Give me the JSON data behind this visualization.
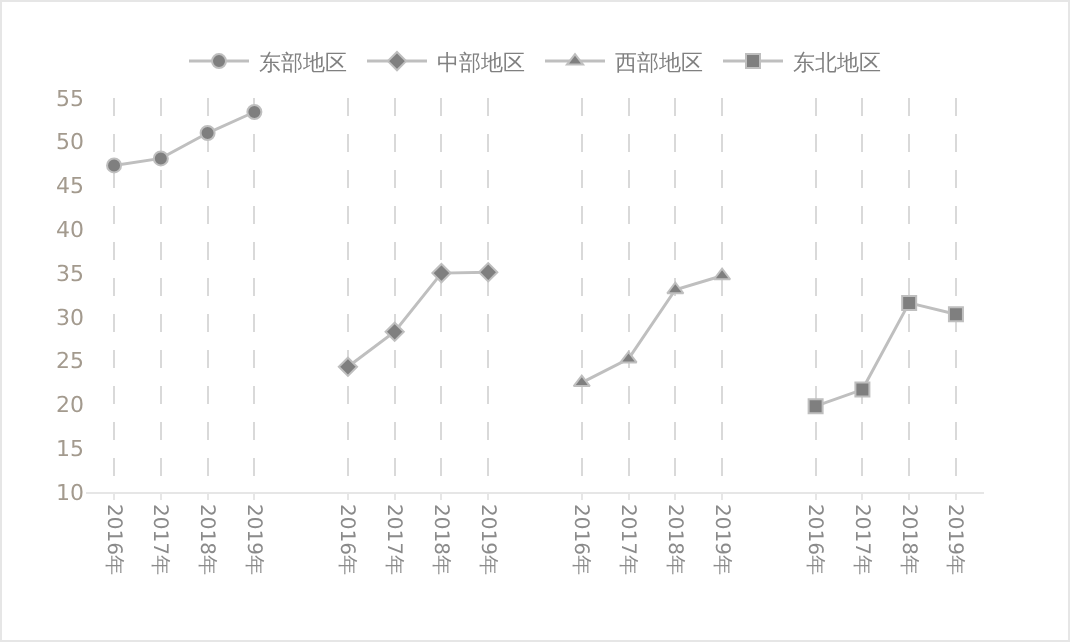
{
  "chart_data": {
    "type": "line",
    "categories": [
      "2016年",
      "2017年",
      "2018年",
      "2019年",
      null,
      "2016年",
      "2017年",
      "2018年",
      "2019年",
      null,
      "2016年",
      "2017年",
      "2018年",
      "2019年",
      null,
      "2016年",
      "2017年",
      "2018年",
      "2019年"
    ],
    "series": [
      {
        "name": "东部地区",
        "color": "#7f7f7f",
        "marker": "circle",
        "values": [
          47.3,
          48.1,
          51.0,
          53.4,
          null,
          null,
          null,
          null,
          null,
          null,
          null,
          null,
          null,
          null,
          null,
          null,
          null,
          null,
          null
        ]
      },
      {
        "name": "中部地区",
        "color": "#7f7f7f",
        "marker": "diamond",
        "values": [
          null,
          null,
          null,
          null,
          null,
          24.3,
          28.3,
          35.0,
          35.1,
          null,
          null,
          null,
          null,
          null,
          null,
          null,
          null,
          null,
          null
        ]
      },
      {
        "name": "西部地区",
        "color": "#7f7f7f",
        "marker": "triangle",
        "values": [
          null,
          null,
          null,
          null,
          null,
          null,
          null,
          null,
          null,
          null,
          22.5,
          25.2,
          33.1,
          34.7,
          null,
          null,
          null,
          null,
          null
        ]
      },
      {
        "name": "东北地区",
        "color": "#7f7f7f",
        "marker": "square",
        "values": [
          null,
          null,
          null,
          null,
          null,
          null,
          null,
          null,
          null,
          null,
          null,
          null,
          null,
          null,
          null,
          19.8,
          21.7,
          31.6,
          30.3
        ]
      }
    ],
    "ylim": [
      10,
      55
    ],
    "yticks": [
      10,
      15,
      20,
      25,
      30,
      35,
      40,
      45,
      50,
      55
    ],
    "grid": "x",
    "legend": "top",
    "line_style": "solid"
  }
}
